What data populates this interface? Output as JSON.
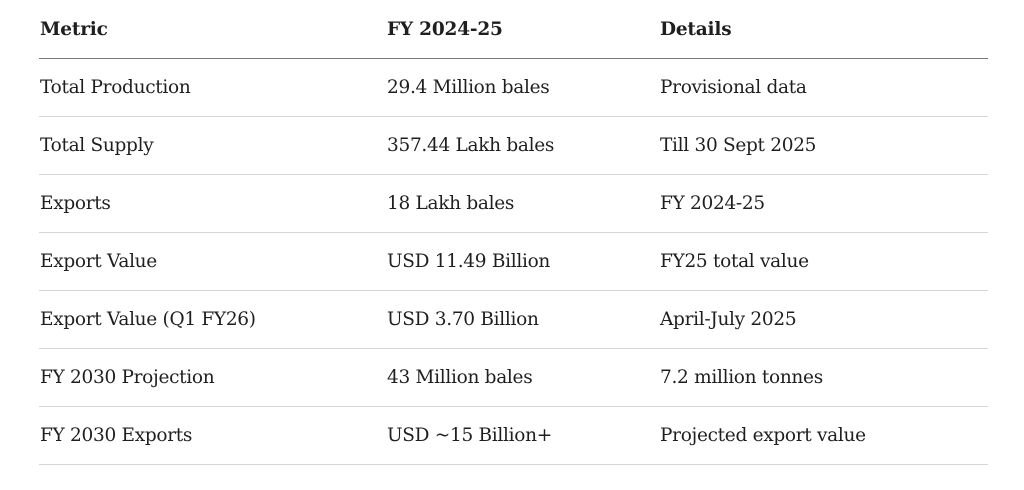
{
  "table": {
    "headers": [
      "Metric",
      "FY 2024-25",
      "Details"
    ],
    "rows": [
      [
        "Total Production",
        "29.4 Million bales",
        "Provisional data"
      ],
      [
        "Total Supply",
        "357.44 Lakh bales",
        "Till 30 Sept 2025"
      ],
      [
        "Exports",
        "18 Lakh bales",
        "FY 2024-25"
      ],
      [
        "Export Value",
        "USD 11.49 Billion",
        "FY25 total value"
      ],
      [
        "Export Value (Q1 FY26)",
        "USD 3.70 Billion",
        "April-July 2025"
      ],
      [
        "FY 2030 Projection",
        "43 Million bales",
        "7.2 million tonnes"
      ],
      [
        "FY 2030 Exports",
        "USD ~15 Billion+",
        "Projected export value"
      ]
    ]
  }
}
